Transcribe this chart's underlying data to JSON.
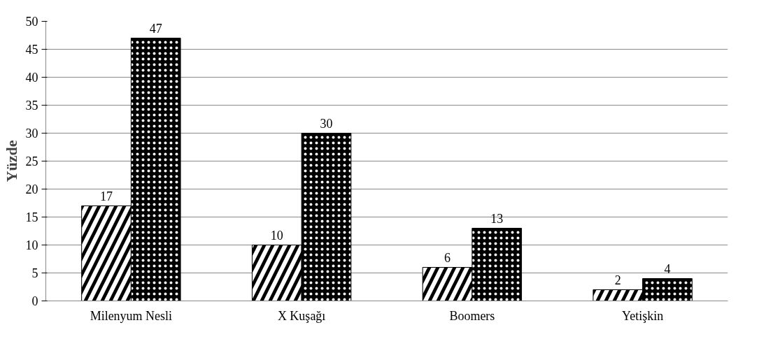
{
  "chart_data": {
    "type": "bar",
    "ylabel": "Yüzde",
    "categories": [
      "Milenyum Nesli",
      "X Kuşağı",
      "Boomers",
      "Yetişkin"
    ],
    "series": [
      {
        "color": "#000000",
        "values": [
          17,
          10,
          6,
          2
        ]
      },
      {
        "color": "#000000",
        "values": [
          47,
          30,
          13,
          4
        ]
      }
    ],
    "ylim": [
      0,
      50
    ],
    "yticks": [
      0,
      5,
      10,
      15,
      20,
      25,
      30,
      35,
      40,
      45,
      50
    ],
    "grid": "y",
    "data_labels": true
  }
}
